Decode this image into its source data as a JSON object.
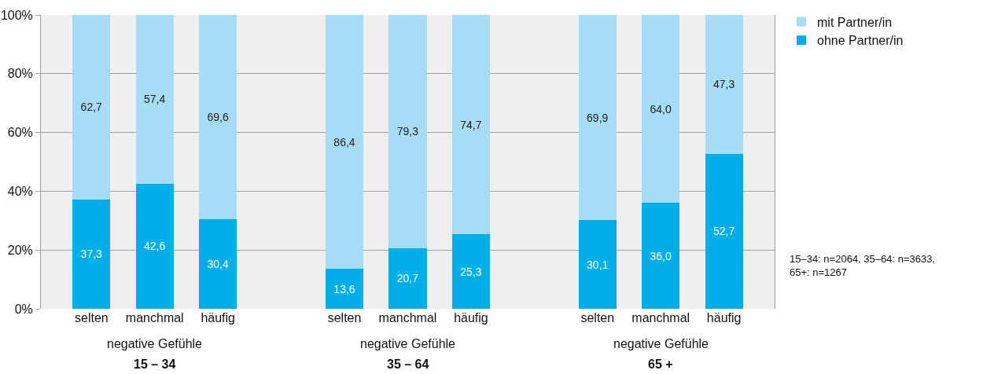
{
  "chart_data": {
    "type": "bar",
    "stacked": true,
    "categories": [
      "selten",
      "manchmal",
      "häufig",
      null,
      "selten",
      "manchmal",
      "häufig",
      null,
      "selten",
      "manchmal",
      "häufig"
    ],
    "series": [
      {
        "name": "ohne Partner/in",
        "color": "#00aee8",
        "values": [
          37.3,
          42.6,
          30.4,
          null,
          13.6,
          20.7,
          25.3,
          null,
          30.1,
          36.0,
          52.7
        ],
        "value_labels": [
          "37,3",
          "42,6",
          "30,4",
          null,
          "13,6",
          "20,7",
          "25,3",
          null,
          "30,1",
          "36,0",
          "52,7"
        ]
      },
      {
        "name": "mit Partner/in",
        "color": "#a6dcf5",
        "values": [
          62.7,
          57.4,
          69.6,
          null,
          86.4,
          79.3,
          74.7,
          null,
          69.9,
          64.0,
          47.3
        ],
        "value_labels": [
          "62,7",
          "57,4",
          "69,6",
          null,
          "86,4",
          "79,3",
          "74,7",
          null,
          "69,9",
          "64,0",
          "47,3"
        ]
      }
    ],
    "ylim": [
      0,
      100
    ],
    "yticks": [
      {
        "value": 0,
        "label": "0%"
      },
      {
        "value": 20,
        "label": "20%"
      },
      {
        "value": 40,
        "label": "40%"
      },
      {
        "value": 60,
        "label": "60%"
      },
      {
        "value": 80,
        "label": "80%"
      },
      {
        "value": 100,
        "label": "100%"
      }
    ],
    "grid": "y",
    "legend": "top right",
    "annotations": [
      "negative Gefühle",
      "15 – 34",
      "negative Gefühle",
      "35 – 64",
      "negative Gefühle",
      "65 +",
      "15–34: n=2064, 35–64: n=3633,\n65+: n=1267"
    ]
  }
}
